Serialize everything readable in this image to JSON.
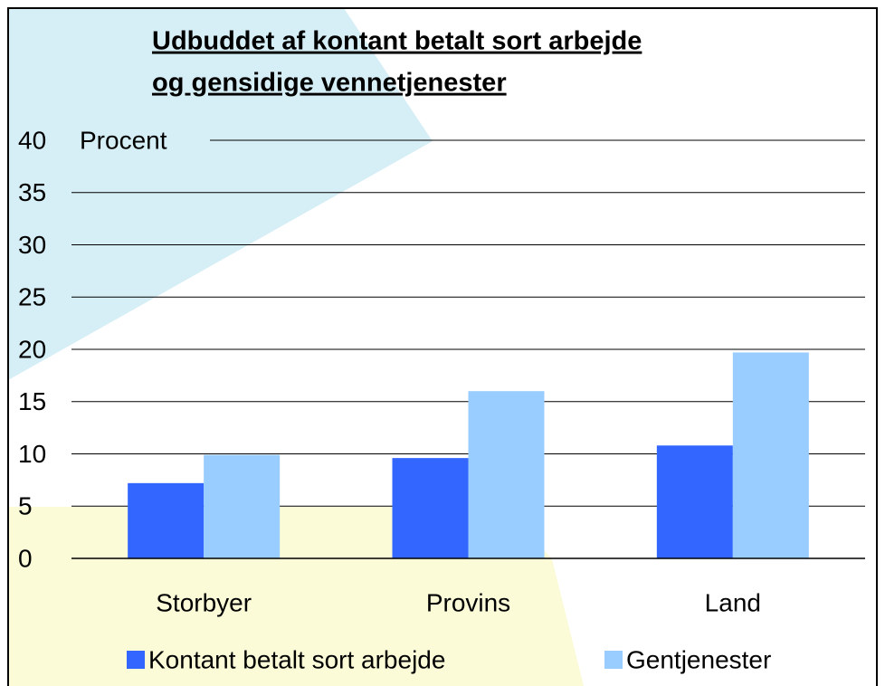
{
  "chart_data": {
    "type": "bar",
    "title": [
      "Udbuddet af kontant betalt sort arbejde",
      "og gensidige vennetjenester"
    ],
    "y_label": "Procent",
    "categories": [
      "Storbyer",
      "Provins",
      "Land"
    ],
    "series": [
      {
        "name": "Kontant betalt sort arbejde",
        "color": "#3366ff",
        "values": [
          7.2,
          9.6,
          10.8
        ]
      },
      {
        "name": "Gentjenester",
        "color": "#99ccff",
        "values": [
          9.9,
          16.0,
          19.7
        ]
      }
    ],
    "ylim": [
      0,
      40
    ],
    "yticks": [
      0,
      5,
      10,
      15,
      20,
      25,
      30,
      35,
      40
    ],
    "grid": true,
    "legend": "bottom"
  }
}
